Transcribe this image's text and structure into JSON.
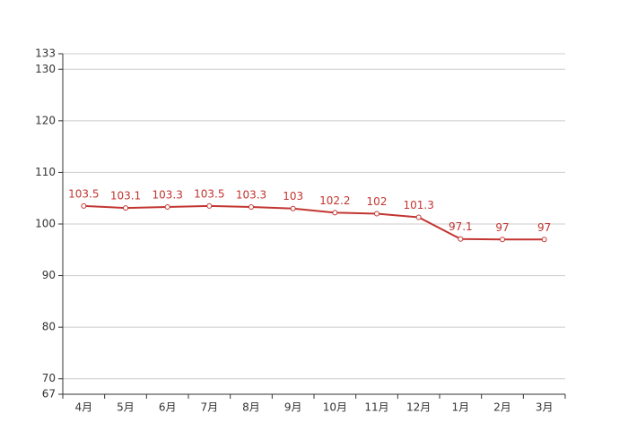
{
  "chart_data": {
    "type": "line",
    "categories": [
      "4月",
      "5月",
      "6月",
      "7月",
      "8月",
      "9月",
      "10月",
      "11月",
      "12月",
      "1月",
      "2月",
      "3月"
    ],
    "values": [
      103.5,
      103.1,
      103.3,
      103.5,
      103.3,
      103,
      102.2,
      102,
      101.3,
      97.1,
      97,
      97
    ],
    "color": "#c23531",
    "ylim": [
      67,
      133
    ],
    "yticks": [
      67,
      70,
      80,
      90,
      100,
      110,
      120,
      130,
      133
    ],
    "grid": true
  }
}
